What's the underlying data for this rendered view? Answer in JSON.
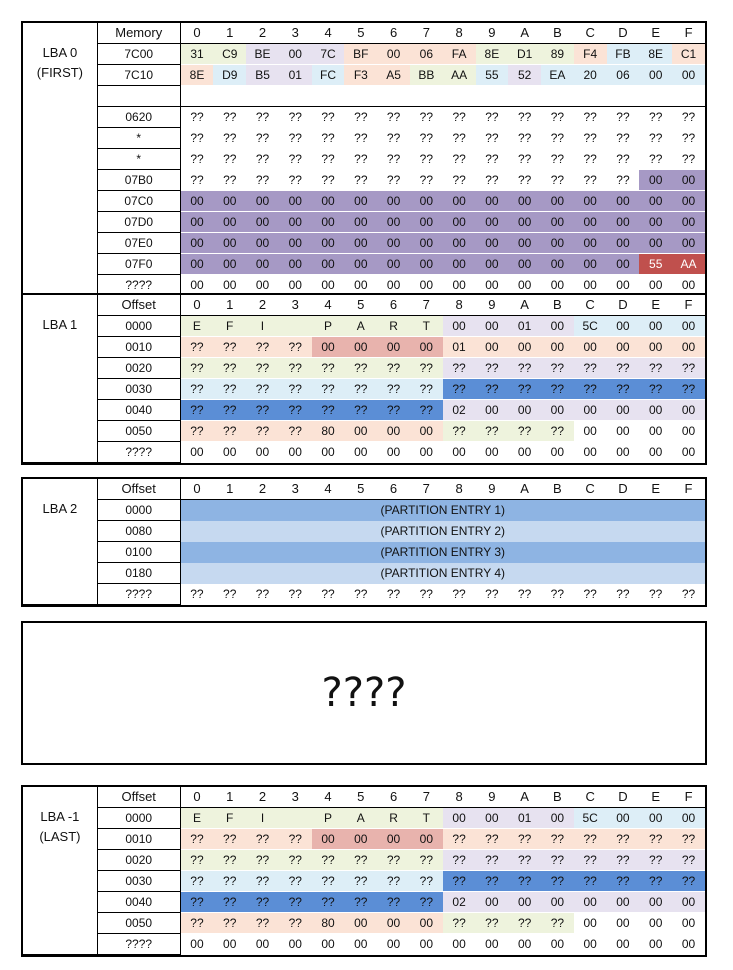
{
  "columns": [
    "0",
    "1",
    "2",
    "3",
    "4",
    "5",
    "6",
    "7",
    "8",
    "9",
    "A",
    "B",
    "C",
    "D",
    "E",
    "F"
  ],
  "mbr": {
    "lba_label": "LBA 0",
    "lba_sub": "(FIRST)",
    "header_label": "Memory",
    "rows": [
      {
        "addr": "7C00",
        "cells": [
          "31",
          "C9",
          "BE",
          "00",
          "7C",
          "BF",
          "00",
          "06",
          "FA",
          "8E",
          "D1",
          "89",
          "F4",
          "FB",
          "8E",
          "C1"
        ]
      },
      {
        "addr": "7C10",
        "cells": [
          "8E",
          "D9",
          "B5",
          "01",
          "FC",
          "F3",
          "A5",
          "BB",
          "AA",
          "55",
          "52",
          "EA",
          "20",
          "06",
          "00",
          "00"
        ]
      },
      {
        "addr": "",
        "cells": []
      },
      {
        "addr": "0620",
        "cells": [
          "??",
          "??",
          "??",
          "??",
          "??",
          "??",
          "??",
          "??",
          "??",
          "??",
          "??",
          "??",
          "??",
          "??",
          "??",
          "??"
        ]
      },
      {
        "addr": "*",
        "cells": [
          "??",
          "??",
          "??",
          "??",
          "??",
          "??",
          "??",
          "??",
          "??",
          "??",
          "??",
          "??",
          "??",
          "??",
          "??",
          "??"
        ]
      },
      {
        "addr": "*",
        "cells": [
          "??",
          "??",
          "??",
          "??",
          "??",
          "??",
          "??",
          "??",
          "??",
          "??",
          "??",
          "??",
          "??",
          "??",
          "??",
          "??"
        ]
      },
      {
        "addr": "07B0",
        "cells": [
          "??",
          "??",
          "??",
          "??",
          "??",
          "??",
          "??",
          "??",
          "??",
          "??",
          "??",
          "??",
          "??",
          "??",
          "00",
          "00"
        ]
      },
      {
        "addr": "07C0",
        "cells": [
          "00",
          "00",
          "00",
          "00",
          "00",
          "00",
          "00",
          "00",
          "00",
          "00",
          "00",
          "00",
          "00",
          "00",
          "00",
          "00"
        ]
      },
      {
        "addr": "07D0",
        "cells": [
          "00",
          "00",
          "00",
          "00",
          "00",
          "00",
          "00",
          "00",
          "00",
          "00",
          "00",
          "00",
          "00",
          "00",
          "00",
          "00"
        ]
      },
      {
        "addr": "07E0",
        "cells": [
          "00",
          "00",
          "00",
          "00",
          "00",
          "00",
          "00",
          "00",
          "00",
          "00",
          "00",
          "00",
          "00",
          "00",
          "00",
          "00"
        ]
      },
      {
        "addr": "07F0",
        "cells": [
          "00",
          "00",
          "00",
          "00",
          "00",
          "00",
          "00",
          "00",
          "00",
          "00",
          "00",
          "00",
          "00",
          "00",
          "55",
          "AA"
        ]
      },
      {
        "addr": "????",
        "cells": [
          "00",
          "00",
          "00",
          "00",
          "00",
          "00",
          "00",
          "00",
          "00",
          "00",
          "00",
          "00",
          "00",
          "00",
          "00",
          "00"
        ]
      }
    ]
  },
  "gpt_header": {
    "lba_label": "LBA 1",
    "lba_sub": "",
    "header_label": "Offset",
    "rows": [
      {
        "addr": "0000",
        "cells": [
          "E",
          "F",
          "I",
          "",
          "P",
          "A",
          "R",
          "T",
          "00",
          "00",
          "01",
          "00",
          "5C",
          "00",
          "00",
          "00"
        ]
      },
      {
        "addr": "0010",
        "cells": [
          "??",
          "??",
          "??",
          "??",
          "00",
          "00",
          "00",
          "00",
          "01",
          "00",
          "00",
          "00",
          "00",
          "00",
          "00",
          "00"
        ]
      },
      {
        "addr": "0020",
        "cells": [
          "??",
          "??",
          "??",
          "??",
          "??",
          "??",
          "??",
          "??",
          "??",
          "??",
          "??",
          "??",
          "??",
          "??",
          "??",
          "??"
        ]
      },
      {
        "addr": "0030",
        "cells": [
          "??",
          "??",
          "??",
          "??",
          "??",
          "??",
          "??",
          "??",
          "??",
          "??",
          "??",
          "??",
          "??",
          "??",
          "??",
          "??"
        ]
      },
      {
        "addr": "0040",
        "cells": [
          "??",
          "??",
          "??",
          "??",
          "??",
          "??",
          "??",
          "??",
          "02",
          "00",
          "00",
          "00",
          "00",
          "00",
          "00",
          "00"
        ]
      },
      {
        "addr": "0050",
        "cells": [
          "??",
          "??",
          "??",
          "??",
          "80",
          "00",
          "00",
          "00",
          "??",
          "??",
          "??",
          "??",
          "00",
          "00",
          "00",
          "00"
        ]
      },
      {
        "addr": "????",
        "cells": [
          "00",
          "00",
          "00",
          "00",
          "00",
          "00",
          "00",
          "00",
          "00",
          "00",
          "00",
          "00",
          "00",
          "00",
          "00",
          "00"
        ]
      }
    ]
  },
  "partition_entries": {
    "lba_label": "LBA 2",
    "header_label": "Offset",
    "rows": [
      {
        "addr": "0000",
        "label": "(PARTITION ENTRY 1)"
      },
      {
        "addr": "0080",
        "label": "(PARTITION ENTRY 2)"
      },
      {
        "addr": "0100",
        "label": "(PARTITION ENTRY 3)"
      },
      {
        "addr": "0180",
        "label": "(PARTITION ENTRY 4)"
      }
    ],
    "last_row": {
      "addr": "????",
      "cells": [
        "??",
        "??",
        "??",
        "??",
        "??",
        "??",
        "??",
        "??",
        "??",
        "??",
        "??",
        "??",
        "??",
        "??",
        "??",
        "??"
      ]
    }
  },
  "unknown_block": {
    "label": "????"
  },
  "backup_header": {
    "lba_label": "LBA -1",
    "lba_sub": "(LAST)",
    "header_label": "Offset",
    "rows": [
      {
        "addr": "0000",
        "cells": [
          "E",
          "F",
          "I",
          "",
          "P",
          "A",
          "R",
          "T",
          "00",
          "00",
          "01",
          "00",
          "5C",
          "00",
          "00",
          "00"
        ]
      },
      {
        "addr": "0010",
        "cells": [
          "??",
          "??",
          "??",
          "??",
          "00",
          "00",
          "00",
          "00",
          "??",
          "??",
          "??",
          "??",
          "??",
          "??",
          "??",
          "??"
        ]
      },
      {
        "addr": "0020",
        "cells": [
          "??",
          "??",
          "??",
          "??",
          "??",
          "??",
          "??",
          "??",
          "??",
          "??",
          "??",
          "??",
          "??",
          "??",
          "??",
          "??"
        ]
      },
      {
        "addr": "0030",
        "cells": [
          "??",
          "??",
          "??",
          "??",
          "??",
          "??",
          "??",
          "??",
          "??",
          "??",
          "??",
          "??",
          "??",
          "??",
          "??",
          "??"
        ]
      },
      {
        "addr": "0040",
        "cells": [
          "??",
          "??",
          "??",
          "??",
          "??",
          "??",
          "??",
          "??",
          "02",
          "00",
          "00",
          "00",
          "00",
          "00",
          "00",
          "00"
        ]
      },
      {
        "addr": "0050",
        "cells": [
          "??",
          "??",
          "??",
          "??",
          "80",
          "00",
          "00",
          "00",
          "??",
          "??",
          "??",
          "??",
          "00",
          "00",
          "00",
          "00"
        ]
      },
      {
        "addr": "????",
        "cells": [
          "00",
          "00",
          "00",
          "00",
          "00",
          "00",
          "00",
          "00",
          "00",
          "00",
          "00",
          "00",
          "00",
          "00",
          "00",
          "00"
        ]
      }
    ]
  },
  "colors": {
    "yellow": "#eef3dd",
    "purple_light": "#e7e2f0",
    "peach": "#fbe3d6",
    "blue_light": "#ddeef7",
    "purple": "#a699c5",
    "red": "#c0504d",
    "rose": "#e8b3ad",
    "blue": "#5b8ed6",
    "entry_dark": "#8eb4e3",
    "entry_light": "#c6d9f0"
  }
}
